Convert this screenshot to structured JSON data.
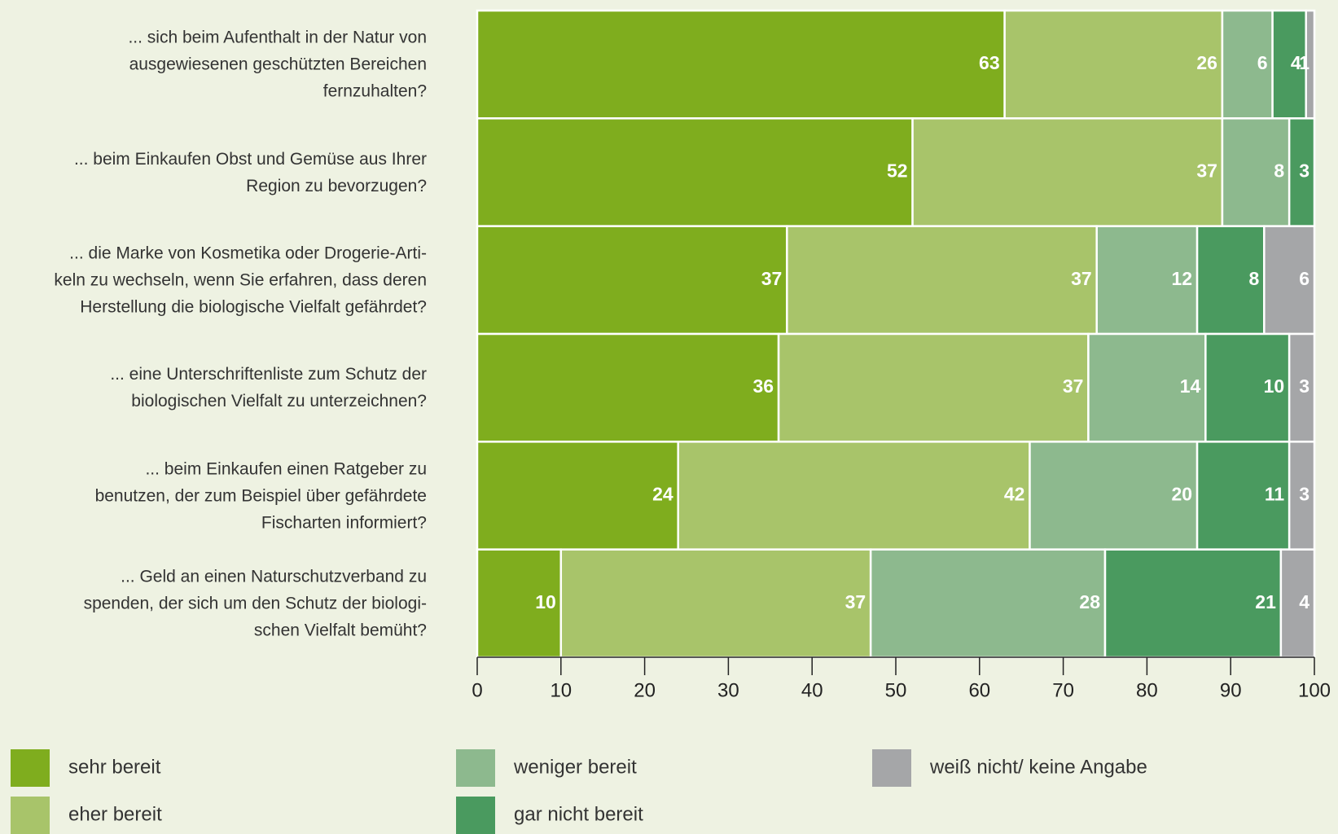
{
  "chart_data": {
    "type": "stacked-barh",
    "categories": [
      "... sich beim Aufenthalt in der Natur von\nausgewiesenen geschützten Bereichen\nfernzuhalten?",
      "... beim Einkaufen Obst und Gemüse aus Ihrer\nRegion zu bevorzugen?",
      "... die Marke von Kosmetika oder Drogerie-Arti-\nkeln zu wechseln, wenn Sie erfahren, dass deren\nHerstellung die biologische Vielfalt gefährdet?",
      "... eine Unterschriftenliste zum Schutz der\nbiologischen Vielfalt zu unterzeichnen?",
      "... beim Einkaufen einen Ratgeber zu\nbenutzen, der zum Beispiel über gefährdete\nFischarten informiert?",
      "... Geld an einen Naturschutzverband zu\nspenden, der sich um den Schutz der biologi-\nschen Vielfalt bemüht?"
    ],
    "series": [
      {
        "name": "sehr bereit",
        "color": "#7fad1e",
        "values": [
          63,
          52,
          37,
          36,
          24,
          10
        ]
      },
      {
        "name": "eher bereit",
        "color": "#a8c46a",
        "values": [
          26,
          37,
          37,
          37,
          42,
          37
        ]
      },
      {
        "name": "weniger bereit",
        "color": "#8db98e",
        "values": [
          6,
          8,
          12,
          14,
          20,
          28
        ]
      },
      {
        "name": "gar nicht bereit",
        "color": "#4a9a5f",
        "values": [
          4,
          3,
          8,
          10,
          11,
          21
        ]
      },
      {
        "name": "weiß nicht/ keine Angabe",
        "color": "#a5a6a8",
        "values": [
          1,
          null,
          6,
          3,
          3,
          4
        ]
      }
    ],
    "xlim": [
      0,
      100
    ],
    "xticks": [
      0,
      10,
      20,
      30,
      40,
      50,
      60,
      70,
      80,
      90,
      100
    ]
  }
}
